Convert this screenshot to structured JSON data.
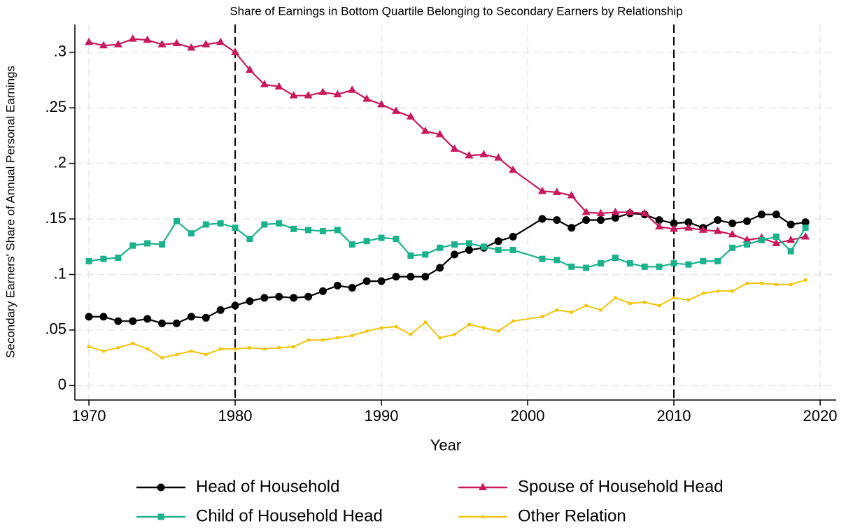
{
  "chart_data": {
    "type": "line",
    "title": "Share of Earnings in Bottom Quartile Belonging to Secondary Earners by Relationship",
    "x_label": "Year",
    "y_label": "Secondary Earners' Share of Annual Personal Earnings",
    "x": [
      1970,
      1971,
      1972,
      1973,
      1974,
      1975,
      1976,
      1977,
      1978,
      1979,
      1980,
      1981,
      1982,
      1983,
      1984,
      1985,
      1986,
      1987,
      1988,
      1989,
      1990,
      1991,
      1992,
      1993,
      1994,
      1995,
      1996,
      1997,
      1998,
      1999,
      2001,
      2002,
      2003,
      2004,
      2005,
      2006,
      2007,
      2008,
      2009,
      2010,
      2011,
      2012,
      2013,
      2014,
      2015,
      2016,
      2017,
      2018,
      2019
    ],
    "series": [
      {
        "name": "Head of Household",
        "color": "#000000",
        "marker": "circle",
        "values": [
          0.062,
          0.062,
          0.058,
          0.058,
          0.06,
          0.056,
          0.056,
          0.062,
          0.061,
          0.068,
          0.072,
          0.076,
          0.079,
          0.08,
          0.079,
          0.08,
          0.085,
          0.09,
          0.088,
          0.094,
          0.094,
          0.098,
          0.098,
          0.098,
          0.106,
          0.118,
          0.122,
          0.124,
          0.13,
          0.134,
          0.15,
          0.149,
          0.142,
          0.149,
          0.149,
          0.151,
          0.155,
          0.154,
          0.149,
          0.146,
          0.147,
          0.142,
          0.149,
          0.146,
          0.148,
          0.154,
          0.154,
          0.145,
          0.147
        ]
      },
      {
        "name": "Spouse of Household Head",
        "color": "#c8195c",
        "marker": "triangle",
        "values": [
          0.309,
          0.306,
          0.307,
          0.312,
          0.311,
          0.307,
          0.308,
          0.304,
          0.307,
          0.309,
          0.3,
          0.284,
          0.271,
          0.269,
          0.261,
          0.261,
          0.264,
          0.262,
          0.266,
          0.258,
          0.253,
          0.247,
          0.242,
          0.229,
          0.226,
          0.213,
          0.207,
          0.208,
          0.205,
          0.194,
          0.175,
          0.174,
          0.171,
          0.156,
          0.155,
          0.156,
          0.156,
          0.155,
          0.143,
          0.141,
          0.142,
          0.14,
          0.139,
          0.136,
          0.131,
          0.133,
          0.128,
          0.131,
          0.134
        ]
      },
      {
        "name": "Child of Household Head",
        "color": "#1ab28a",
        "marker": "square",
        "values": [
          0.112,
          0.114,
          0.115,
          0.126,
          0.128,
          0.127,
          0.148,
          0.137,
          0.145,
          0.146,
          0.142,
          0.132,
          0.145,
          0.146,
          0.141,
          0.14,
          0.139,
          0.14,
          0.127,
          0.13,
          0.133,
          0.132,
          0.117,
          0.118,
          0.124,
          0.127,
          0.128,
          0.125,
          0.122,
          0.122,
          0.114,
          0.113,
          0.107,
          0.106,
          0.11,
          0.115,
          0.11,
          0.107,
          0.107,
          0.11,
          0.109,
          0.112,
          0.112,
          0.124,
          0.127,
          0.131,
          0.134,
          0.121,
          0.142
        ]
      },
      {
        "name": "Other Relation",
        "color": "#f2c40c",
        "marker": "small-square",
        "values": [
          0.035,
          0.031,
          0.034,
          0.038,
          0.033,
          0.025,
          0.028,
          0.031,
          0.028,
          0.033,
          0.033,
          0.034,
          0.033,
          0.034,
          0.035,
          0.041,
          0.041,
          0.043,
          0.045,
          0.049,
          0.052,
          0.053,
          0.046,
          0.057,
          0.043,
          0.046,
          0.055,
          0.052,
          0.049,
          0.058,
          0.062,
          0.068,
          0.066,
          0.072,
          0.068,
          0.079,
          0.074,
          0.075,
          0.072,
          0.079,
          0.077,
          0.083,
          0.085,
          0.085,
          0.092,
          0.092,
          0.091,
          0.091,
          0.095
        ]
      }
    ],
    "xlim": [
      1969.04,
      2021.1
    ],
    "ylim": [
      -0.013,
      0.325
    ],
    "xticks": [
      1970,
      1980,
      1990,
      2000,
      2010,
      2020
    ],
    "yticks": [
      0,
      {
        "value": 0.05,
        "label": ".05"
      },
      {
        "value": 0.1,
        "label": ".1"
      },
      {
        "value": 0.15,
        "label": ".15"
      },
      {
        "value": 0.2,
        "label": ".2"
      },
      {
        "value": 0.25,
        "label": ".25"
      },
      {
        "value": 0.3,
        "label": ".3"
      }
    ],
    "reference_lines": [
      1980,
      2010
    ],
    "grid": true,
    "legend_position": "bottom"
  }
}
